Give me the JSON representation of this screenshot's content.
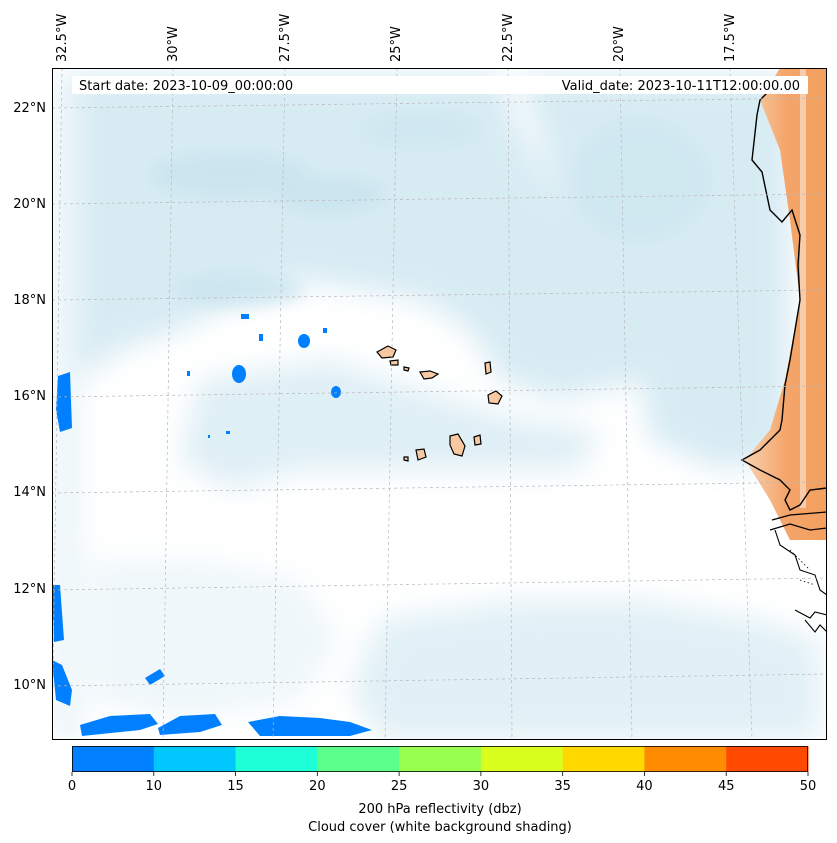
{
  "header": {
    "start_date": "Start date: 2023-10-09_00:00:00",
    "valid_date": "Valid_date: 2023-10-11T12:00:00.00"
  },
  "map": {
    "lon_labels": [
      "32.5°W",
      "30°W",
      "27.5°W",
      "25°W",
      "22.5°W",
      "20°W",
      "17.5°W"
    ],
    "lat_labels": [
      "22°N",
      "20°N",
      "18°N",
      "16°N",
      "14°N",
      "12°N",
      "10°N"
    ],
    "land_color": "#f8c9a0",
    "dust_color": "#f4a56a",
    "cloud_color": "#add8e6",
    "reflectivity_color": "#0080ff"
  },
  "colorbar": {
    "ticks": [
      "0",
      "10",
      "15",
      "20",
      "25",
      "30",
      "35",
      "40",
      "45",
      "50"
    ],
    "colors": [
      "#0080ff",
      "#00c8ff",
      "#1effd8",
      "#5cff8c",
      "#96ff50",
      "#d8ff1e",
      "#ffd800",
      "#ff8c00",
      "#ff4a00"
    ],
    "label": "200 hPa reflectivity (dbz)",
    "sublabel": "Cloud cover (white background shading)"
  }
}
